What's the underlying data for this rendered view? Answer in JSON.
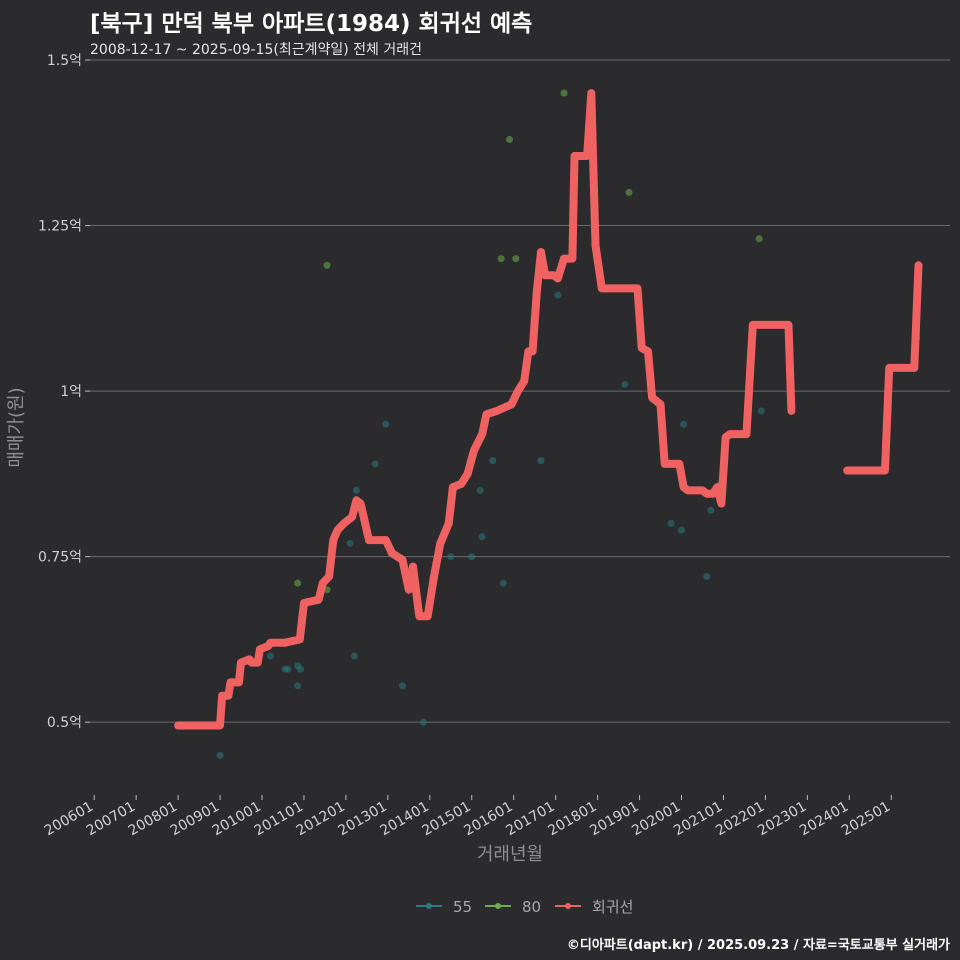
{
  "title": "[북구] 만덕 북부 아파트(1984) 회귀선 예측",
  "subtitle": "2008-12-17 ~ 2025-09-15(최근계약일) 전체 거래건",
  "caption": "©디아파트(dapt.kr) / 2025.09.23 / 자료=국토교통부 실거래가",
  "chart_data": {
    "type": "scatter",
    "xlabel": "거래년월",
    "ylabel": "매매가(원)",
    "x_unit": "year (decimal)",
    "xlim": [
      2005.9,
      2026.4
    ],
    "ylim": [
      0.39,
      1.5
    ],
    "y_ticks": [
      {
        "value": 0.5,
        "label": "0.5억"
      },
      {
        "value": 0.75,
        "label": "0.75억"
      },
      {
        "value": 1.0,
        "label": "1억"
      },
      {
        "value": 1.25,
        "label": "1.25억"
      },
      {
        "value": 1.5,
        "label": "1.5억"
      }
    ],
    "x_ticks": [
      {
        "value": 2006,
        "label": "200601"
      },
      {
        "value": 2007,
        "label": "200701"
      },
      {
        "value": 2008,
        "label": "200801"
      },
      {
        "value": 2009,
        "label": "200901"
      },
      {
        "value": 2010,
        "label": "201001"
      },
      {
        "value": 2011,
        "label": "201101"
      },
      {
        "value": 2012,
        "label": "201201"
      },
      {
        "value": 2013,
        "label": "201301"
      },
      {
        "value": 2014,
        "label": "201401"
      },
      {
        "value": 2015,
        "label": "201501"
      },
      {
        "value": 2016,
        "label": "201601"
      },
      {
        "value": 2017,
        "label": "201701"
      },
      {
        "value": 2018,
        "label": "201801"
      },
      {
        "value": 2019,
        "label": "201901"
      },
      {
        "value": 2020,
        "label": "202001"
      },
      {
        "value": 2021,
        "label": "202101"
      },
      {
        "value": 2022,
        "label": "202201"
      },
      {
        "value": 2023,
        "label": "202301"
      },
      {
        "value": 2024,
        "label": "202401"
      },
      {
        "value": 2025,
        "label": "202501"
      }
    ],
    "legend": {
      "position": "bottom",
      "items": [
        "55",
        "80",
        "회귀선"
      ]
    },
    "colors": {
      "55": "#2a7a80",
      "80": "#6ab04c",
      "회귀선": "#f06262"
    },
    "series": [
      {
        "name": "55",
        "type": "scatter",
        "points": [
          [
            2009.0,
            0.45
          ],
          [
            2010.2,
            0.6
          ],
          [
            2010.55,
            0.58
          ],
          [
            2010.62,
            0.58
          ],
          [
            2010.85,
            0.585
          ],
          [
            2010.85,
            0.555
          ],
          [
            2010.92,
            0.58
          ],
          [
            2012.1,
            0.77
          ],
          [
            2012.2,
            0.6
          ],
          [
            2012.25,
            0.85
          ],
          [
            2012.7,
            0.89
          ],
          [
            2012.95,
            0.95
          ],
          [
            2013.35,
            0.555
          ],
          [
            2013.85,
            0.5
          ],
          [
            2014.5,
            0.75
          ],
          [
            2015.0,
            0.75
          ],
          [
            2015.2,
            0.85
          ],
          [
            2015.25,
            0.78
          ],
          [
            2015.5,
            0.895
          ],
          [
            2015.75,
            0.71
          ],
          [
            2016.65,
            0.895
          ],
          [
            2017.05,
            1.145
          ],
          [
            2018.65,
            1.01
          ],
          [
            2019.75,
            0.8
          ],
          [
            2020.0,
            0.79
          ],
          [
            2020.05,
            0.95
          ],
          [
            2020.6,
            0.72
          ],
          [
            2020.7,
            0.82
          ],
          [
            2020.92,
            0.86
          ],
          [
            2021.9,
            0.97
          ]
        ]
      },
      {
        "name": "80",
        "type": "scatter",
        "points": [
          [
            2010.85,
            0.71
          ],
          [
            2011.55,
            1.19
          ],
          [
            2011.55,
            0.7
          ],
          [
            2015.7,
            1.2
          ],
          [
            2015.9,
            1.38
          ],
          [
            2016.05,
            1.2
          ],
          [
            2017.2,
            1.45
          ],
          [
            2018.75,
            1.3
          ],
          [
            2021.85,
            1.23
          ],
          [
            2025.6,
            1.08
          ]
        ]
      },
      {
        "name": "회귀선",
        "type": "line",
        "segments": [
          [
            [
              2008.0,
              0.495
            ],
            [
              2008.95,
              0.495
            ],
            [
              2009.0,
              0.495
            ],
            [
              2009.05,
              0.54
            ],
            [
              2009.2,
              0.54
            ],
            [
              2009.25,
              0.56
            ],
            [
              2009.45,
              0.56
            ],
            [
              2009.5,
              0.59
            ],
            [
              2009.7,
              0.595
            ],
            [
              2009.75,
              0.59
            ],
            [
              2009.9,
              0.59
            ],
            [
              2009.95,
              0.61
            ],
            [
              2010.15,
              0.615
            ],
            [
              2010.2,
              0.62
            ],
            [
              2010.5,
              0.62
            ],
            [
              2010.55,
              0.62
            ],
            [
              2010.9,
              0.625
            ],
            [
              2011.0,
              0.68
            ],
            [
              2011.35,
              0.685
            ],
            [
              2011.45,
              0.71
            ],
            [
              2011.6,
              0.72
            ],
            [
              2011.7,
              0.775
            ],
            [
              2011.8,
              0.79
            ],
            [
              2011.95,
              0.8
            ],
            [
              2012.15,
              0.81
            ],
            [
              2012.25,
              0.835
            ],
            [
              2012.35,
              0.83
            ],
            [
              2012.55,
              0.775
            ],
            [
              2012.95,
              0.775
            ],
            [
              2013.1,
              0.755
            ],
            [
              2013.35,
              0.745
            ],
            [
              2013.5,
              0.7
            ],
            [
              2013.6,
              0.735
            ],
            [
              2013.75,
              0.66
            ],
            [
              2013.95,
              0.66
            ],
            [
              2014.1,
              0.72
            ],
            [
              2014.25,
              0.77
            ],
            [
              2014.45,
              0.8
            ],
            [
              2014.55,
              0.855
            ],
            [
              2014.75,
              0.86
            ],
            [
              2014.9,
              0.875
            ],
            [
              2015.05,
              0.91
            ],
            [
              2015.25,
              0.935
            ],
            [
              2015.35,
              0.965
            ],
            [
              2015.6,
              0.97
            ],
            [
              2015.95,
              0.98
            ],
            [
              2016.1,
              1.0
            ],
            [
              2016.25,
              1.015
            ],
            [
              2016.35,
              1.06
            ],
            [
              2016.45,
              1.06
            ],
            [
              2016.55,
              1.15
            ],
            [
              2016.65,
              1.21
            ],
            [
              2016.75,
              1.175
            ],
            [
              2016.95,
              1.175
            ],
            [
              2017.05,
              1.17
            ],
            [
              2017.2,
              1.2
            ],
            [
              2017.4,
              1.2
            ],
            [
              2017.45,
              1.355
            ],
            [
              2017.75,
              1.355
            ],
            [
              2017.85,
              1.45
            ],
            [
              2017.95,
              1.22
            ],
            [
              2018.1,
              1.155
            ],
            [
              2018.95,
              1.155
            ],
            [
              2019.05,
              1.065
            ],
            [
              2019.2,
              1.06
            ],
            [
              2019.3,
              0.99
            ],
            [
              2019.5,
              0.98
            ],
            [
              2019.6,
              0.89
            ],
            [
              2019.95,
              0.89
            ],
            [
              2020.05,
              0.855
            ],
            [
              2020.15,
              0.85
            ],
            [
              2020.5,
              0.85
            ],
            [
              2020.6,
              0.845
            ],
            [
              2020.75,
              0.845
            ],
            [
              2020.85,
              0.855
            ],
            [
              2020.95,
              0.83
            ],
            [
              2021.05,
              0.93
            ],
            [
              2021.15,
              0.935
            ],
            [
              2021.55,
              0.935
            ],
            [
              2021.7,
              1.1
            ],
            [
              2022.55,
              1.1
            ],
            [
              2022.62,
              0.97
            ]
          ],
          [
            [
              2023.95,
              0.88
            ],
            [
              2024.85,
              0.88
            ],
            [
              2024.95,
              1.035
            ],
            [
              2025.55,
              1.035
            ],
            [
              2025.65,
              1.19
            ]
          ]
        ]
      }
    ]
  }
}
